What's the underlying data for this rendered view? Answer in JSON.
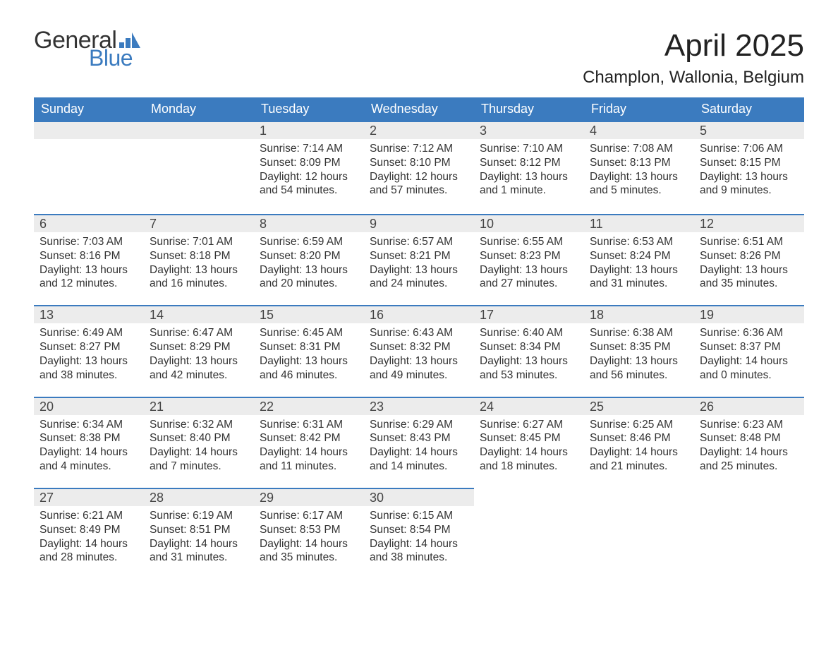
{
  "logo": {
    "text_general": "General",
    "text_blue": "Blue",
    "accent_color": "#3b7bbf"
  },
  "title": "April 2025",
  "location": "Champlon, Wallonia, Belgium",
  "colors": {
    "header_bg": "#3b7bbf",
    "header_text": "#ffffff",
    "daynum_bg": "#ececec",
    "daynum_border": "#3b7bbf",
    "body_text": "#333333",
    "page_bg": "#ffffff"
  },
  "weekdays": [
    "Sunday",
    "Monday",
    "Tuesday",
    "Wednesday",
    "Thursday",
    "Friday",
    "Saturday"
  ],
  "weeks": [
    [
      null,
      null,
      {
        "n": "1",
        "sr": "Sunrise: 7:14 AM",
        "ss": "Sunset: 8:09 PM",
        "dl1": "Daylight: 12 hours",
        "dl2": "and 54 minutes."
      },
      {
        "n": "2",
        "sr": "Sunrise: 7:12 AM",
        "ss": "Sunset: 8:10 PM",
        "dl1": "Daylight: 12 hours",
        "dl2": "and 57 minutes."
      },
      {
        "n": "3",
        "sr": "Sunrise: 7:10 AM",
        "ss": "Sunset: 8:12 PM",
        "dl1": "Daylight: 13 hours",
        "dl2": "and 1 minute."
      },
      {
        "n": "4",
        "sr": "Sunrise: 7:08 AM",
        "ss": "Sunset: 8:13 PM",
        "dl1": "Daylight: 13 hours",
        "dl2": "and 5 minutes."
      },
      {
        "n": "5",
        "sr": "Sunrise: 7:06 AM",
        "ss": "Sunset: 8:15 PM",
        "dl1": "Daylight: 13 hours",
        "dl2": "and 9 minutes."
      }
    ],
    [
      {
        "n": "6",
        "sr": "Sunrise: 7:03 AM",
        "ss": "Sunset: 8:16 PM",
        "dl1": "Daylight: 13 hours",
        "dl2": "and 12 minutes."
      },
      {
        "n": "7",
        "sr": "Sunrise: 7:01 AM",
        "ss": "Sunset: 8:18 PM",
        "dl1": "Daylight: 13 hours",
        "dl2": "and 16 minutes."
      },
      {
        "n": "8",
        "sr": "Sunrise: 6:59 AM",
        "ss": "Sunset: 8:20 PM",
        "dl1": "Daylight: 13 hours",
        "dl2": "and 20 minutes."
      },
      {
        "n": "9",
        "sr": "Sunrise: 6:57 AM",
        "ss": "Sunset: 8:21 PM",
        "dl1": "Daylight: 13 hours",
        "dl2": "and 24 minutes."
      },
      {
        "n": "10",
        "sr": "Sunrise: 6:55 AM",
        "ss": "Sunset: 8:23 PM",
        "dl1": "Daylight: 13 hours",
        "dl2": "and 27 minutes."
      },
      {
        "n": "11",
        "sr": "Sunrise: 6:53 AM",
        "ss": "Sunset: 8:24 PM",
        "dl1": "Daylight: 13 hours",
        "dl2": "and 31 minutes."
      },
      {
        "n": "12",
        "sr": "Sunrise: 6:51 AM",
        "ss": "Sunset: 8:26 PM",
        "dl1": "Daylight: 13 hours",
        "dl2": "and 35 minutes."
      }
    ],
    [
      {
        "n": "13",
        "sr": "Sunrise: 6:49 AM",
        "ss": "Sunset: 8:27 PM",
        "dl1": "Daylight: 13 hours",
        "dl2": "and 38 minutes."
      },
      {
        "n": "14",
        "sr": "Sunrise: 6:47 AM",
        "ss": "Sunset: 8:29 PM",
        "dl1": "Daylight: 13 hours",
        "dl2": "and 42 minutes."
      },
      {
        "n": "15",
        "sr": "Sunrise: 6:45 AM",
        "ss": "Sunset: 8:31 PM",
        "dl1": "Daylight: 13 hours",
        "dl2": "and 46 minutes."
      },
      {
        "n": "16",
        "sr": "Sunrise: 6:43 AM",
        "ss": "Sunset: 8:32 PM",
        "dl1": "Daylight: 13 hours",
        "dl2": "and 49 minutes."
      },
      {
        "n": "17",
        "sr": "Sunrise: 6:40 AM",
        "ss": "Sunset: 8:34 PM",
        "dl1": "Daylight: 13 hours",
        "dl2": "and 53 minutes."
      },
      {
        "n": "18",
        "sr": "Sunrise: 6:38 AM",
        "ss": "Sunset: 8:35 PM",
        "dl1": "Daylight: 13 hours",
        "dl2": "and 56 minutes."
      },
      {
        "n": "19",
        "sr": "Sunrise: 6:36 AM",
        "ss": "Sunset: 8:37 PM",
        "dl1": "Daylight: 14 hours",
        "dl2": "and 0 minutes."
      }
    ],
    [
      {
        "n": "20",
        "sr": "Sunrise: 6:34 AM",
        "ss": "Sunset: 8:38 PM",
        "dl1": "Daylight: 14 hours",
        "dl2": "and 4 minutes."
      },
      {
        "n": "21",
        "sr": "Sunrise: 6:32 AM",
        "ss": "Sunset: 8:40 PM",
        "dl1": "Daylight: 14 hours",
        "dl2": "and 7 minutes."
      },
      {
        "n": "22",
        "sr": "Sunrise: 6:31 AM",
        "ss": "Sunset: 8:42 PM",
        "dl1": "Daylight: 14 hours",
        "dl2": "and 11 minutes."
      },
      {
        "n": "23",
        "sr": "Sunrise: 6:29 AM",
        "ss": "Sunset: 8:43 PM",
        "dl1": "Daylight: 14 hours",
        "dl2": "and 14 minutes."
      },
      {
        "n": "24",
        "sr": "Sunrise: 6:27 AM",
        "ss": "Sunset: 8:45 PM",
        "dl1": "Daylight: 14 hours",
        "dl2": "and 18 minutes."
      },
      {
        "n": "25",
        "sr": "Sunrise: 6:25 AM",
        "ss": "Sunset: 8:46 PM",
        "dl1": "Daylight: 14 hours",
        "dl2": "and 21 minutes."
      },
      {
        "n": "26",
        "sr": "Sunrise: 6:23 AM",
        "ss": "Sunset: 8:48 PM",
        "dl1": "Daylight: 14 hours",
        "dl2": "and 25 minutes."
      }
    ],
    [
      {
        "n": "27",
        "sr": "Sunrise: 6:21 AM",
        "ss": "Sunset: 8:49 PM",
        "dl1": "Daylight: 14 hours",
        "dl2": "and 28 minutes."
      },
      {
        "n": "28",
        "sr": "Sunrise: 6:19 AM",
        "ss": "Sunset: 8:51 PM",
        "dl1": "Daylight: 14 hours",
        "dl2": "and 31 minutes."
      },
      {
        "n": "29",
        "sr": "Sunrise: 6:17 AM",
        "ss": "Sunset: 8:53 PM",
        "dl1": "Daylight: 14 hours",
        "dl2": "and 35 minutes."
      },
      {
        "n": "30",
        "sr": "Sunrise: 6:15 AM",
        "ss": "Sunset: 8:54 PM",
        "dl1": "Daylight: 14 hours",
        "dl2": "and 38 minutes."
      },
      null,
      null,
      null
    ]
  ]
}
